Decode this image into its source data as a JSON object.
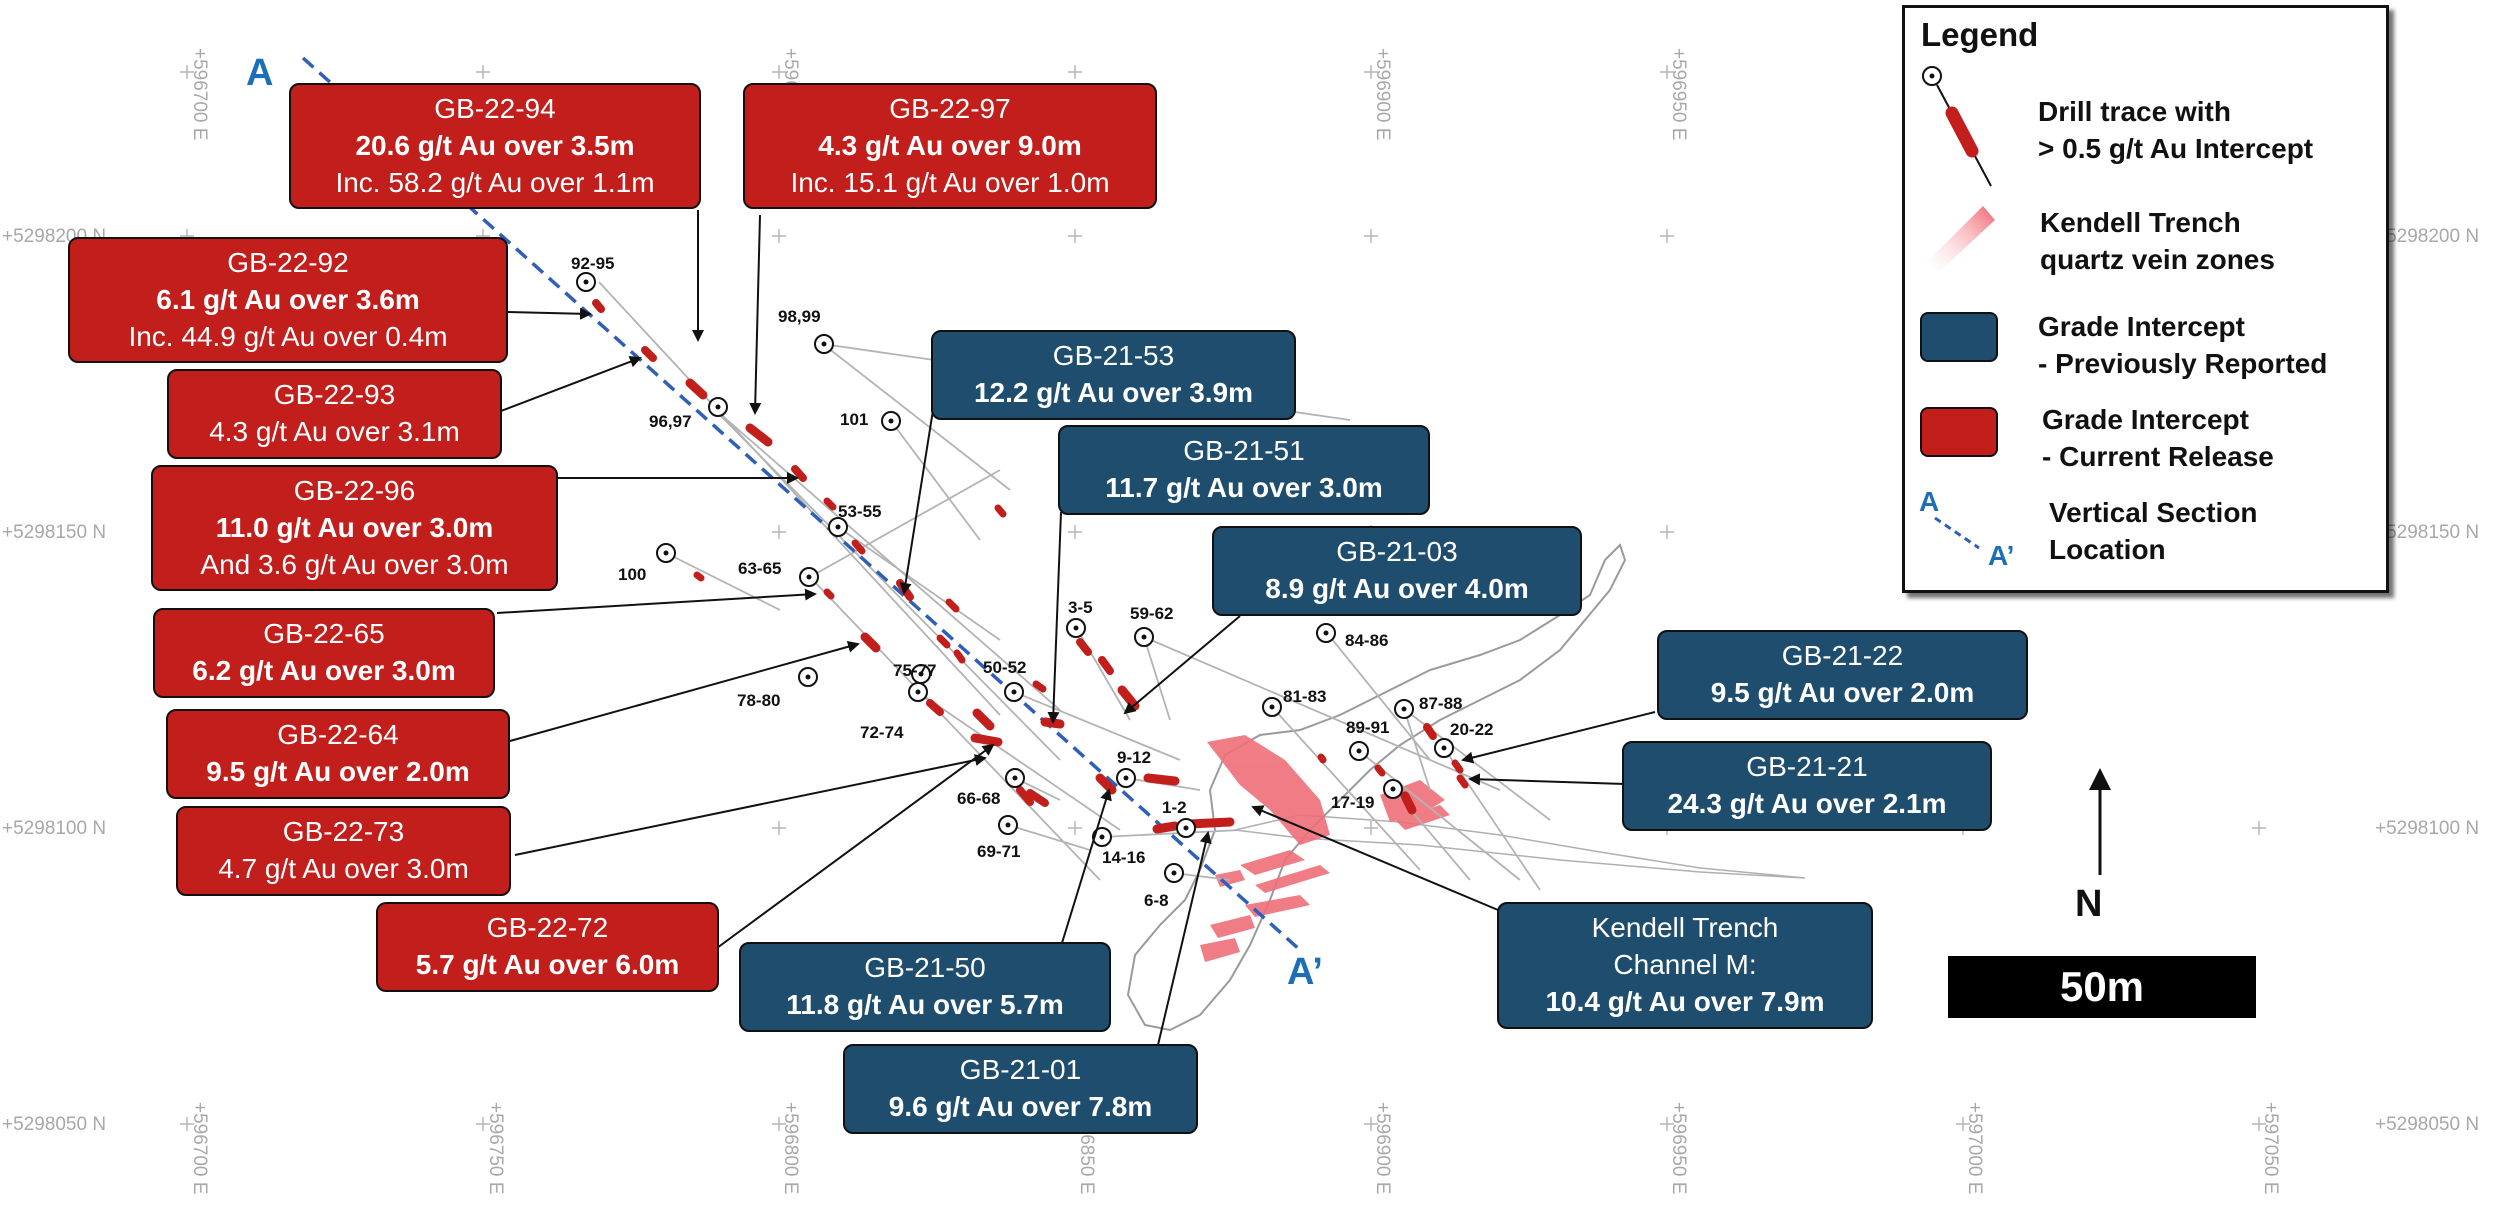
{
  "map": {
    "easting_labels": [
      "+596700 E",
      "+596750 E",
      "+596800 E",
      "+596850 E",
      "+596900 E",
      "+596950 E",
      "+597000 E",
      "+597050 E"
    ],
    "northing_labels": [
      "+5298200 N",
      "+5298150 N",
      "+5298100 N",
      "+5298050 N"
    ],
    "section_start": "A",
    "section_end": "A’",
    "drill_hole_labels": [
      "92-95",
      "98,99",
      "96,97",
      "101",
      "53-55",
      "100",
      "63-65",
      "3-5",
      "59-62",
      "84-86",
      "75-77",
      "50-52",
      "78-80",
      "72-74",
      "81-83",
      "87-88",
      "89-91",
      "20-22",
      "9-12",
      "17-19",
      "66-68",
      "1-2",
      "69-71",
      "14-16",
      "6-8"
    ]
  },
  "callouts_current": [
    {
      "id": "GB-22-94",
      "main": "20.6 g/t Au over 3.5m",
      "sub": "Inc. 58.2 g/t Au over 1.1m"
    },
    {
      "id": "GB-22-97",
      "main": "4.3 g/t Au over 9.0m",
      "sub": "Inc. 15.1 g/t Au over 1.0m"
    },
    {
      "id": "GB-22-92",
      "main": "6.1 g/t Au over 3.6m",
      "sub": "Inc. 44.9 g/t Au over 0.4m"
    },
    {
      "id": "GB-22-93",
      "main": "4.3 g/t Au over 3.1m"
    },
    {
      "id": "GB-22-96",
      "main": "11.0 g/t Au over 3.0m",
      "sub": "And 3.6 g/t Au over 3.0m"
    },
    {
      "id": "GB-22-65",
      "main": "6.2 g/t Au over 3.0m"
    },
    {
      "id": "GB-22-64",
      "main": "9.5 g/t Au over 2.0m"
    },
    {
      "id": "GB-22-73",
      "main": "4.7 g/t Au over 3.0m"
    },
    {
      "id": "GB-22-72",
      "main": "5.7 g/t Au over 6.0m"
    }
  ],
  "callouts_previous": [
    {
      "id": "GB-21-53",
      "main": "12.2 g/t Au over 3.9m"
    },
    {
      "id": "GB-21-51",
      "main": "11.7 g/t Au over 3.0m"
    },
    {
      "id": "GB-21-03",
      "main": "8.9 g/t Au over 4.0m"
    },
    {
      "id": "GB-21-22",
      "main": "9.5 g/t Au over 2.0m"
    },
    {
      "id": "GB-21-21",
      "main": "24.3 g/t Au over 2.1m"
    },
    {
      "id": "GB-21-50",
      "main": "11.8 g/t Au over 5.7m"
    },
    {
      "id": "GB-21-01",
      "main": "9.6 g/t Au over 7.8m"
    },
    {
      "id": "Kendell Trench",
      "line2": "Channel M:",
      "main": "10.4 g/t Au over 7.9m"
    }
  ],
  "legend": {
    "title": "Legend",
    "drill_line1": "Drill trace with",
    "drill_line2": "> 0.5 g/t Au Intercept",
    "trench_line1": "Kendell Trench",
    "trench_line2": "quartz vein zones",
    "prev_line1": "Grade Intercept",
    "prev_line2": "- Previously Reported",
    "curr_line1": "Grade Intercept",
    "curr_line2": "- Current Release",
    "section_a": "A",
    "section_a2": "A’",
    "section_line1": "Vertical Section",
    "section_line2": "Location"
  },
  "north_label": "N",
  "scale_label": "50m",
  "colors": {
    "current": "#c21e1c",
    "previous": "#1e4d6d",
    "section_line": "#1b6fb8",
    "vein": "#ef6f78"
  }
}
